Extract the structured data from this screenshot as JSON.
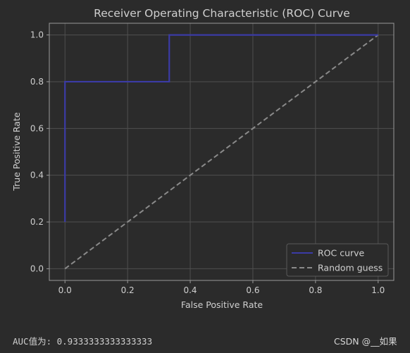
{
  "chart_data": {
    "type": "line",
    "title": "Receiver Operating Characteristic (ROC) Curve",
    "xlabel": "False Positive Rate",
    "ylabel": "True Positive Rate",
    "xlim": [
      -0.05,
      1.05
    ],
    "ylim": [
      -0.05,
      1.05
    ],
    "xticks": [
      0.0,
      0.2,
      0.4,
      0.6,
      0.8,
      1.0
    ],
    "yticks": [
      0.0,
      0.2,
      0.4,
      0.6,
      0.8,
      1.0
    ],
    "xtick_labels": [
      "0.0",
      "0.2",
      "0.4",
      "0.6",
      "0.8",
      "1.0"
    ],
    "ytick_labels": [
      "0.0",
      "0.2",
      "0.4",
      "0.6",
      "0.8",
      "1.0"
    ],
    "grid": true,
    "legend_position": "lower-right",
    "series": [
      {
        "name": "ROC curve",
        "color": "#3b3ba6",
        "line_style": "solid",
        "x": [
          0.0,
          0.0,
          0.333,
          0.333,
          1.0
        ],
        "y": [
          0.2,
          0.8,
          0.8,
          1.0,
          1.0
        ]
      },
      {
        "name": "Random guess",
        "color": "#8a8a8a",
        "line_style": "dashed",
        "x": [
          0.0,
          1.0
        ],
        "y": [
          0.0,
          1.0
        ]
      }
    ]
  },
  "colors": {
    "background": "#2b2b2b",
    "axes_frame": "#9a9a9a",
    "grid": "#4f4f4f",
    "text": "#cfcfcf",
    "legend_bg": "#2b2b2b",
    "legend_border": "#5a5a5a"
  },
  "output": {
    "auc_text": "AUC值为: 0.9333333333333333"
  },
  "watermark": "CSDN @__如果"
}
